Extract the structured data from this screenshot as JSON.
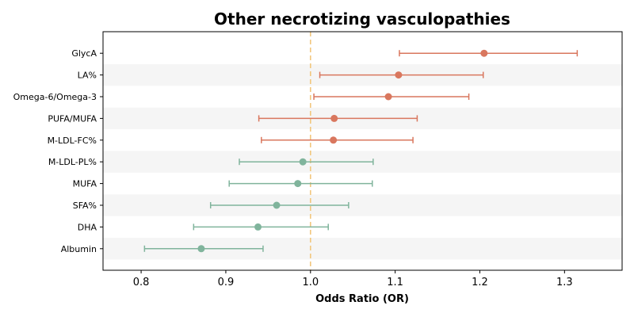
{
  "chart_data": {
    "type": "forest",
    "title": "Other necrotizing vasculopathies",
    "xlabel": "Odds Ratio (OR)",
    "ylabel": "",
    "xlim": [
      0.755,
      1.368
    ],
    "xticks": [
      0.8,
      0.9,
      1.0,
      1.1,
      1.2,
      1.3
    ],
    "xtick_labels": [
      "0.8",
      "0.9",
      "1.0",
      "1.1",
      "1.2",
      "1.3"
    ],
    "reference_line": 1.0,
    "grid": false,
    "alternating_row_shading": true,
    "colors": {
      "above_one": "#d9775e",
      "below_one": "#80b49c",
      "reference_line": "#f2c77e",
      "row_shade": "#f5f5f5"
    },
    "rows": [
      {
        "label": "GlycA",
        "or": 1.205,
        "lower": 1.105,
        "upper": 1.315
      },
      {
        "label": "LA%",
        "or": 1.104,
        "lower": 1.011,
        "upper": 1.204
      },
      {
        "label": "Omega-6/Omega-3",
        "or": 1.092,
        "lower": 1.004,
        "upper": 1.187
      },
      {
        "label": "PUFA/MUFA",
        "or": 1.028,
        "lower": 0.939,
        "upper": 1.126
      },
      {
        "label": "M-LDL-FC%",
        "or": 1.027,
        "lower": 0.942,
        "upper": 1.121
      },
      {
        "label": "M-LDL-PL%",
        "or": 0.991,
        "lower": 0.916,
        "upper": 1.074
      },
      {
        "label": "MUFA",
        "or": 0.985,
        "lower": 0.904,
        "upper": 1.073
      },
      {
        "label": "SFA%",
        "or": 0.96,
        "lower": 0.882,
        "upper": 1.045
      },
      {
        "label": "DHA",
        "or": 0.938,
        "lower": 0.862,
        "upper": 1.021
      },
      {
        "label": "Albumin",
        "or": 0.871,
        "lower": 0.804,
        "upper": 0.944
      }
    ]
  }
}
